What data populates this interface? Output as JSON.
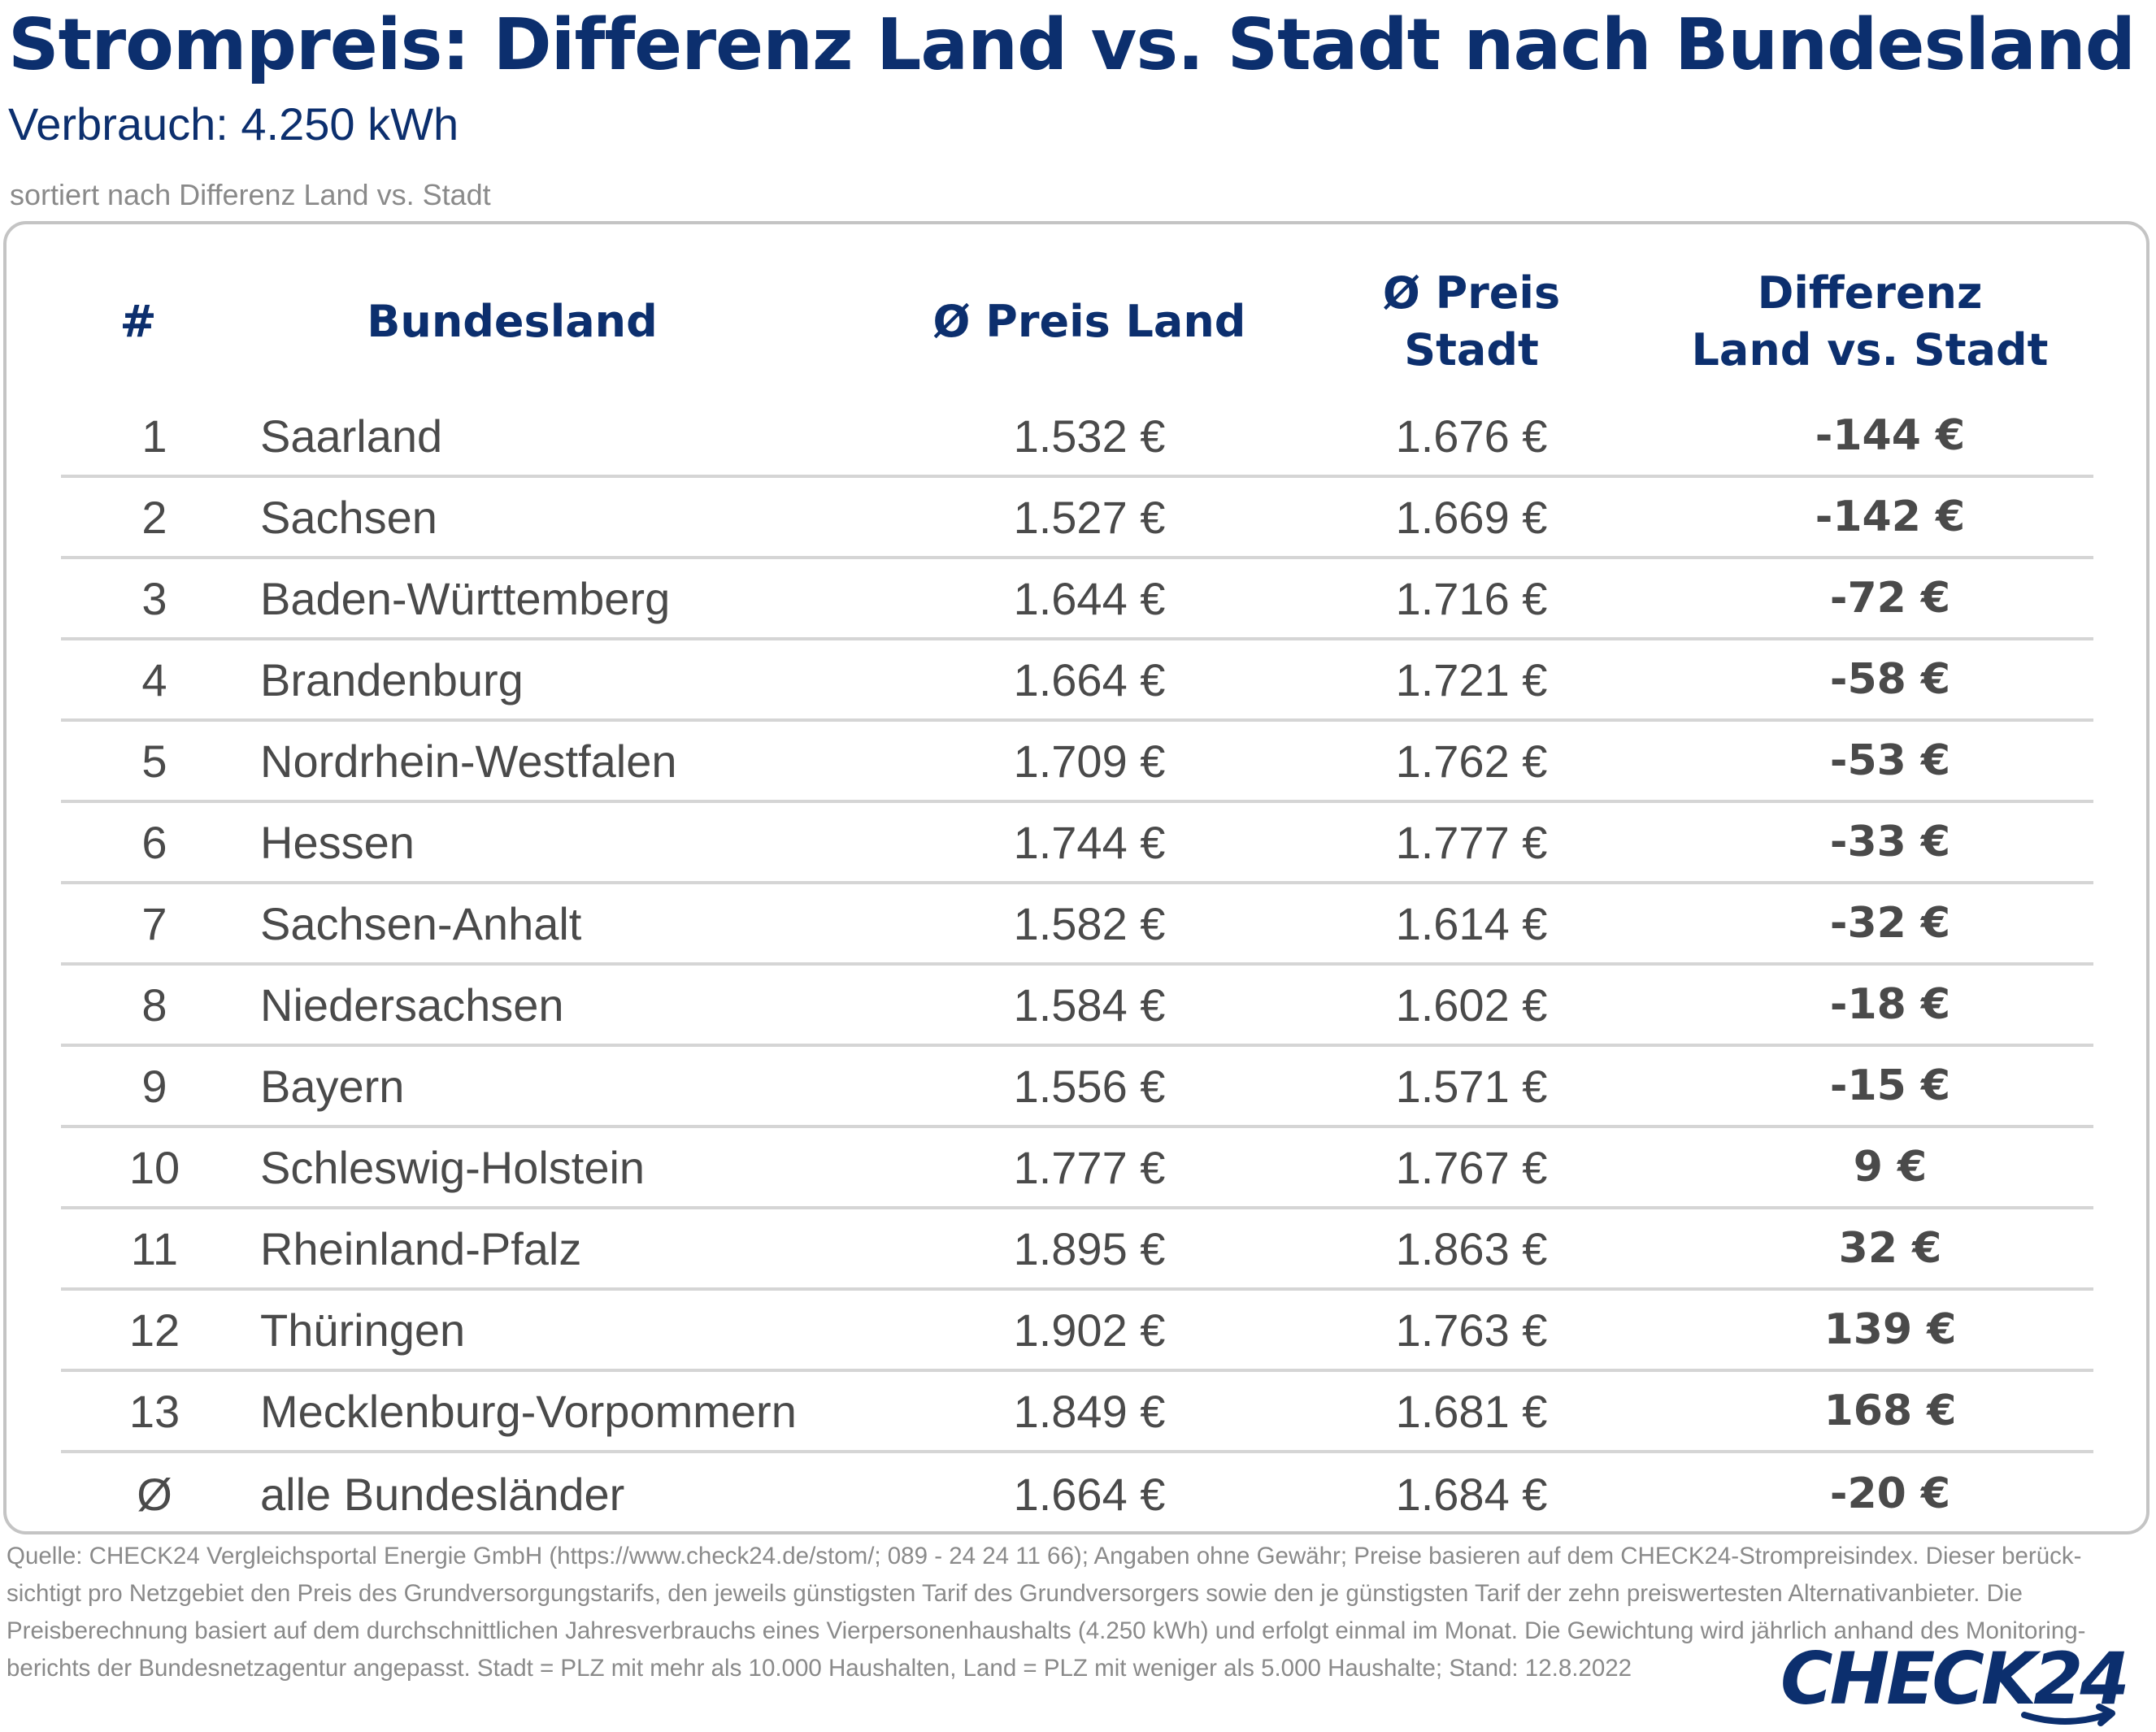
{
  "header": {
    "title": "Strompreis: Differenz Land vs. Stadt nach Bundesland",
    "subtitle": "Verbrauch: 4.250 kWh",
    "sort_note": "sortiert nach Differenz Land vs. Stadt"
  },
  "table": {
    "columns": {
      "rank": "#",
      "bundesland": "Bundesland",
      "preis_land": "Ø Preis Land",
      "preis_stadt": "Ø Preis Stadt",
      "differenz_line1": "Differenz",
      "differenz_line2": "Land vs. Stadt"
    },
    "rows": [
      {
        "rank": "1",
        "bundesland": "Saarland",
        "preis_land": "1.532 €",
        "preis_stadt": "1.676 €",
        "differenz": "-144 €"
      },
      {
        "rank": "2",
        "bundesland": "Sachsen",
        "preis_land": "1.527 €",
        "preis_stadt": "1.669 €",
        "differenz": "-142 €"
      },
      {
        "rank": "3",
        "bundesland": "Baden-Württemberg",
        "preis_land": "1.644 €",
        "preis_stadt": "1.716 €",
        "differenz": "-72 €"
      },
      {
        "rank": "4",
        "bundesland": "Brandenburg",
        "preis_land": "1.664 €",
        "preis_stadt": "1.721 €",
        "differenz": "-58 €"
      },
      {
        "rank": "5",
        "bundesland": "Nordrhein-Westfalen",
        "preis_land": "1.709 €",
        "preis_stadt": "1.762 €",
        "differenz": "-53 €"
      },
      {
        "rank": "6",
        "bundesland": "Hessen",
        "preis_land": "1.744 €",
        "preis_stadt": "1.777 €",
        "differenz": "-33 €"
      },
      {
        "rank": "7",
        "bundesland": "Sachsen-Anhalt",
        "preis_land": "1.582 €",
        "preis_stadt": "1.614 €",
        "differenz": "-32 €"
      },
      {
        "rank": "8",
        "bundesland": "Niedersachsen",
        "preis_land": "1.584 €",
        "preis_stadt": "1.602 €",
        "differenz": "-18 €"
      },
      {
        "rank": "9",
        "bundesland": "Bayern",
        "preis_land": "1.556 €",
        "preis_stadt": "1.571 €",
        "differenz": "-15 €"
      },
      {
        "rank": "10",
        "bundesland": "Schleswig-Holstein",
        "preis_land": "1.777 €",
        "preis_stadt": "1.767 €",
        "differenz": "9 €"
      },
      {
        "rank": "11",
        "bundesland": "Rheinland-Pfalz",
        "preis_land": "1.895 €",
        "preis_stadt": "1.863 €",
        "differenz": "32 €"
      },
      {
        "rank": "12",
        "bundesland": "Thüringen",
        "preis_land": "1.902 €",
        "preis_stadt": "1.763 €",
        "differenz": "139 €"
      },
      {
        "rank": "13",
        "bundesland": "Mecklenburg-Vorpommern",
        "preis_land": "1.849 €",
        "preis_stadt": "1.681 €",
        "differenz": "168 €"
      },
      {
        "rank": "Ø",
        "bundesland": "alle Bundesländer",
        "preis_land": "1.664 €",
        "preis_stadt": "1.684 €",
        "differenz": "-20 €"
      }
    ]
  },
  "source": {
    "lines": [
      "Quelle: CHECK24 Vergleichsportal Energie GmbH (https://www.check24.de/stom/; 089 - 24 24 11 66); Angaben ohne Gewähr; Preise basieren auf dem CHECK24-Strompreisindex. Dieser berück-",
      "sichtigt pro Netzgebiet den Preis des Grundversorgungstarifs, den jeweils günstigsten Tarif des Grundversorgers sowie den je günstigsten Tarif der zehn preiswertesten Alternativanbieter. Die",
      "Preisberechnung basiert auf dem durchschnittlichen Jahresverbrauchs eines Vierpersonenhaushalts (4.250 kWh) und erfolgt einmal im Monat. Die Gewichtung wird jährlich anhand des Monitoring-",
      "berichts der Bundesnetzagentur angepasst. Stadt = PLZ mit mehr als 10.000 Haushalten, Land = PLZ mit weniger als 5.000 Haushalte; Stand: 12.8.2022"
    ]
  },
  "logo": {
    "text": "CHECK24",
    "color": "#0c2f6e"
  },
  "colors": {
    "title": "#0c2f6e",
    "text": "#4a4a4a",
    "muted": "#8a8a8a",
    "divider": "#d5d5d5",
    "border": "#c4c4c4"
  }
}
